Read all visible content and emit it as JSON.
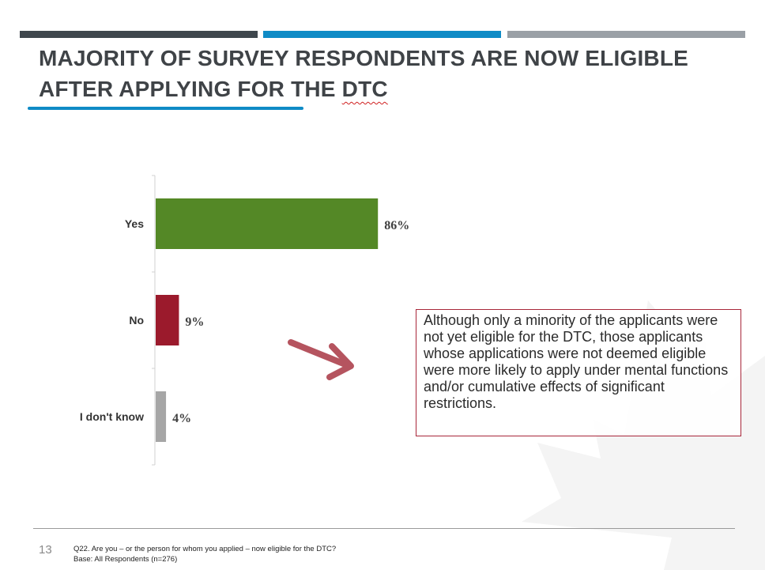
{
  "title": {
    "line1": "MAJORITY OF SURVEY RESPONDENTS ARE NOW ELIGIBLE",
    "line2_prefix": "AFTER APPLYING FOR THE ",
    "line2_dtc": "DTC"
  },
  "colors": {
    "bar_top_1": "#3f474d",
    "bar_top_2": "#0f8bc6",
    "bar_top_3": "#9aa0a6",
    "yes": "#548826",
    "no": "#9b1a2c",
    "dont_know": "#a6a6a6",
    "callout_border": "#a8273a",
    "arrow": "#b5545f"
  },
  "chart_data": {
    "type": "bar",
    "orientation": "horizontal",
    "categories": [
      "Yes",
      "No",
      "I don't know"
    ],
    "values": [
      86,
      9,
      4
    ],
    "labels": [
      "86%",
      "9%",
      "4%"
    ],
    "colors": [
      "#548826",
      "#9b1a2c",
      "#a6a6a6"
    ],
    "xlim": [
      0,
      100
    ],
    "title": "",
    "xlabel": "",
    "ylabel": ""
  },
  "callout": {
    "text": "Although only a minority of the applicants were not yet eligible for the DTC, those applicants whose applications were not deemed eligible were more likely to apply under mental functions and/or cumulative effects of significant restrictions."
  },
  "footer": {
    "page_number": "13",
    "question": "Q22. Are you – or the person for whom you applied – now eligible for the DTC?",
    "base": "Base: All Respondents  (n=276)"
  }
}
